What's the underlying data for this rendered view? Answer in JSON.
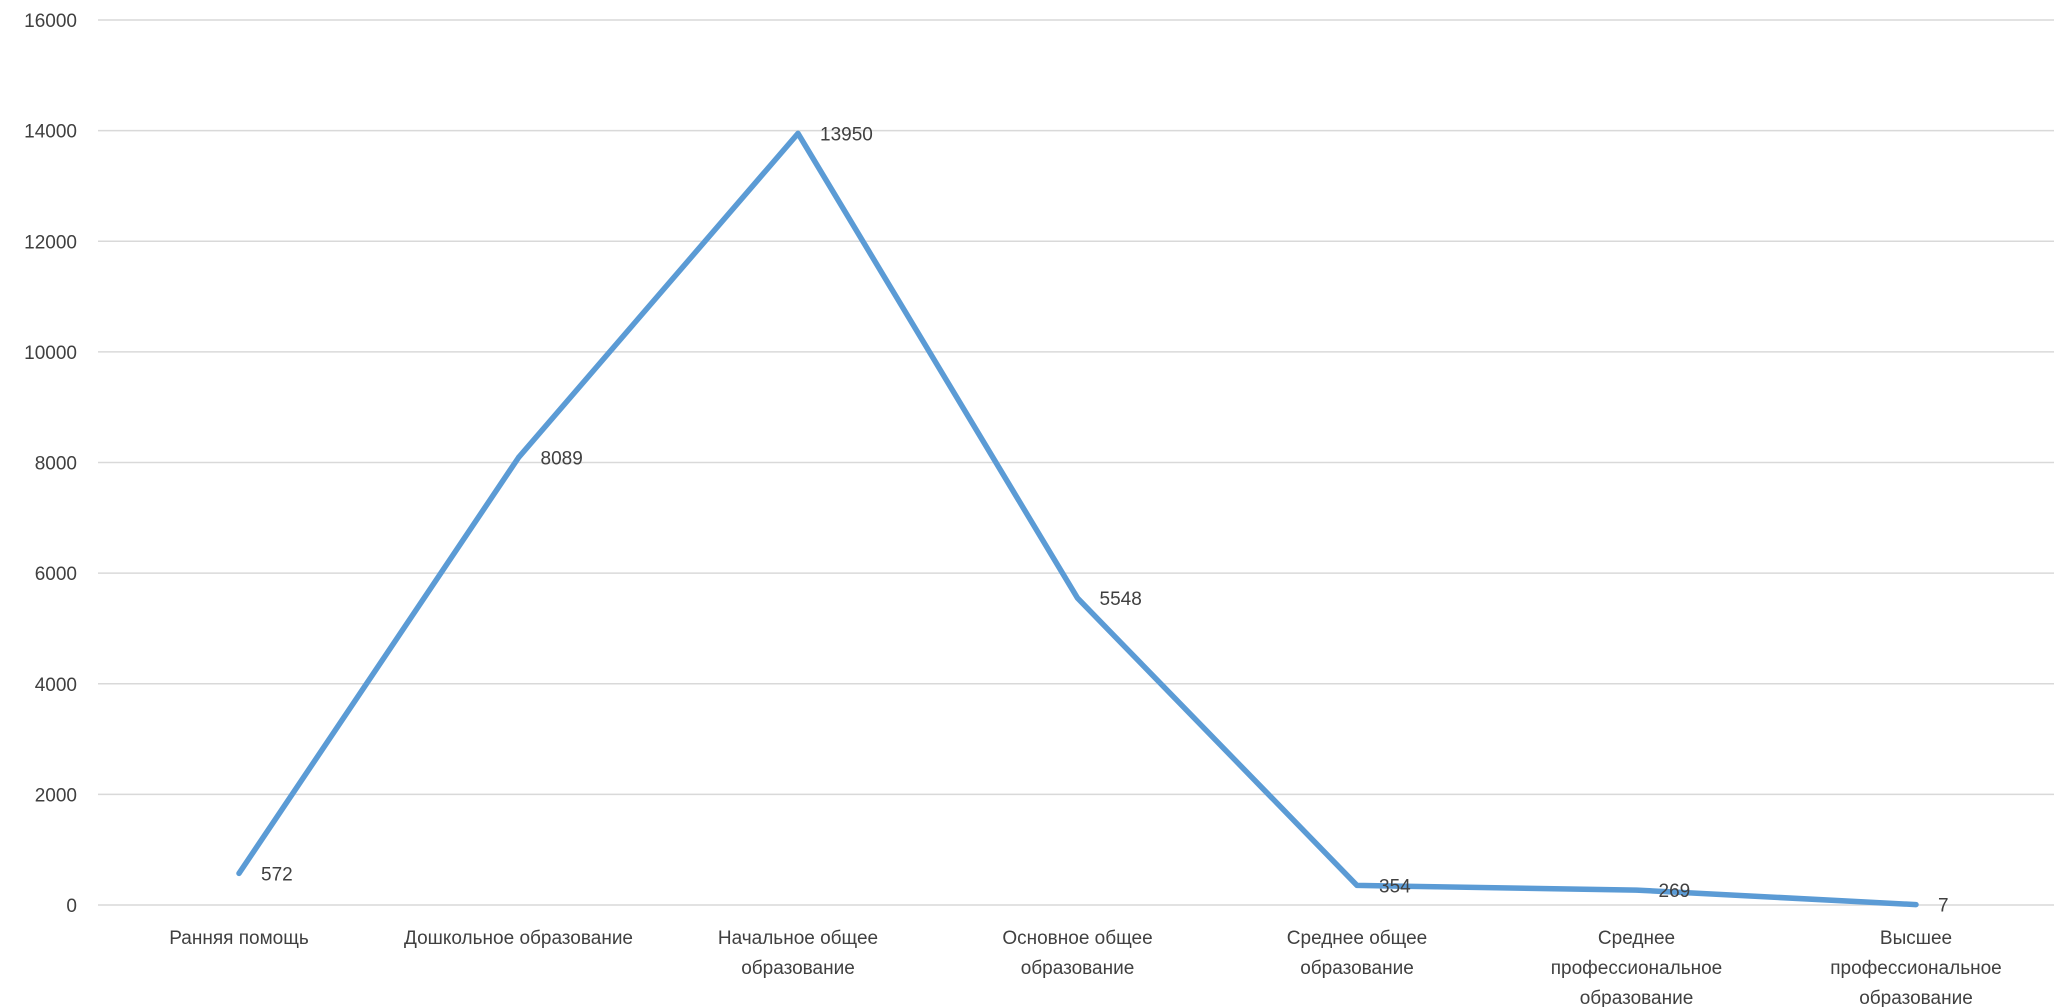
{
  "chart_data": {
    "type": "line",
    "categories": [
      [
        "Ранняя помощь"
      ],
      [
        "Дошкольное образование"
      ],
      [
        "Начальное общее",
        "образование"
      ],
      [
        "Основное общее",
        "образование"
      ],
      [
        "Среднее общее",
        "образование"
      ],
      [
        "Среднее",
        "профессиональное",
        "образование"
      ],
      [
        "Высшее",
        "профессиональное",
        "образование"
      ]
    ],
    "series": [
      {
        "values": [
          572,
          8089,
          13950,
          5548,
          354,
          269,
          7
        ],
        "color": "#5b9bd5"
      }
    ],
    "ylim": [
      0,
      16000
    ],
    "yticks": [
      0,
      2000,
      4000,
      6000,
      8000,
      10000,
      12000,
      14000,
      16000
    ],
    "data_labels": [
      "572",
      "8089",
      "13950",
      "5548",
      "354",
      "269",
      "7"
    ],
    "grid": true,
    "legend": "none",
    "title": "",
    "xlabel": "",
    "ylabel": ""
  }
}
